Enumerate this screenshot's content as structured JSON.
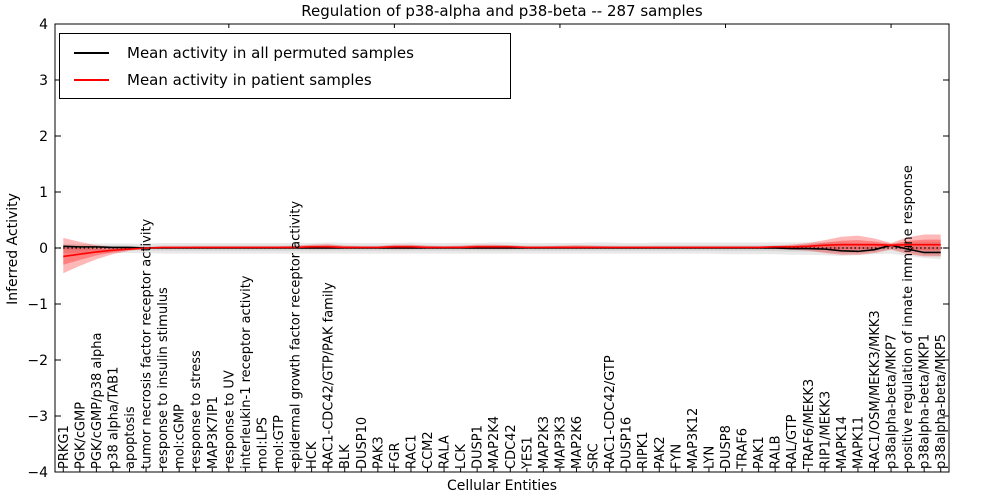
{
  "figure": {
    "title": "Regulation of p38-alpha and p38-beta -- 287 samples",
    "xlabel": "Cellular Entities",
    "ylabel": "Inferred Activity"
  },
  "legend": {
    "items": [
      {
        "label": "Mean activity in all permuted samples",
        "color": "#000000"
      },
      {
        "label": "Mean activity in patient samples",
        "color": "#ff0000"
      }
    ]
  },
  "chart_data": {
    "type": "line",
    "title": "Regulation of p38-alpha and p38-beta -- 287 samples",
    "xlabel": "Cellular Entities",
    "ylabel": "Inferred Activity",
    "ylim": [
      -4,
      4
    ],
    "yticks": [
      "4",
      "3",
      "2",
      "1",
      "0",
      "−1",
      "−2",
      "−3",
      "−4"
    ],
    "grid": false,
    "legend_position": "upper left",
    "zero_line": {
      "style": "dotted",
      "color": "#000000",
      "y": 0
    },
    "top_tick_positions": [
      10,
      20,
      30,
      40,
      50
    ],
    "categories": [
      "PRKG1",
      "PGK/cGMP",
      "PGK/cGMP/p38 alpha",
      "p38 alpha/TAB1",
      "apoptosis",
      "tumor necrosis factor receptor activity",
      "response to insulin stimulus",
      "mol:cGMP",
      "response to stress",
      "MAP3K7IP1",
      "response to UV",
      "interleukin-1 receptor activity",
      "mol:LPS",
      "mol:GTP",
      "epidermal growth factor receptor activity",
      "HCK",
      "RAC1-CDC42/GTP/PAK family",
      "BLK",
      "DUSP10",
      "PAK3",
      "FGR",
      "RAC1",
      "CCM2",
      "RALA",
      "LCK",
      "DUSP1",
      "MAP2K4",
      "CDC42",
      "YES1",
      "MAP2K3",
      "MAP3K3",
      "MAP2K6",
      "SRC",
      "RAC1-CDC42/GTP",
      "DUSP16",
      "RIPK1",
      "PAK2",
      "FYN",
      "MAP3K12",
      "LYN",
      "DUSP8",
      "TRAF6",
      "PAK1",
      "RALB",
      "RAL/GTP",
      "TRAF6/MEKK3",
      "RIP1/MEKK3",
      "MAPK14",
      "MAPK11",
      "RAC1/OSM/MEKK3/MKK3",
      "p38alpha-beta/MKP7",
      "positive regulation of innate immune response",
      "p38alpha-beta/MKP1",
      "p38alpha-beta/MKP5"
    ],
    "series": [
      {
        "name": "Mean activity in all permuted samples",
        "color": "#000000",
        "values": [
          0.03,
          0.02,
          0.02,
          0.01,
          0.01,
          0,
          0,
          0,
          0,
          0,
          0,
          0,
          0,
          0,
          0,
          0,
          0,
          0,
          0,
          0,
          0,
          0,
          0,
          0,
          0,
          0,
          0,
          0,
          0,
          0,
          0,
          0,
          0,
          0,
          0,
          0,
          0,
          0,
          0,
          0,
          0,
          0,
          0,
          0,
          -0.01,
          -0.01,
          -0.02,
          -0.05,
          -0.06,
          -0.03,
          0.05,
          -0.02,
          -0.08,
          -0.08
        ]
      },
      {
        "name": "Mean activity in patient samples",
        "color": "#ff0000",
        "values": [
          -0.15,
          -0.11,
          -0.07,
          -0.04,
          -0.02,
          0,
          0.01,
          0.01,
          0.01,
          0.01,
          0.01,
          0.01,
          0.01,
          0.01,
          0.01,
          0.02,
          0.02,
          0.01,
          0.01,
          0.01,
          0.02,
          0.02,
          0.01,
          0.01,
          0.01,
          0.02,
          0.02,
          0.02,
          0.01,
          0.01,
          0.01,
          0.01,
          0.01,
          0.01,
          0.01,
          0.01,
          0.01,
          0.01,
          0.01,
          0.01,
          0.01,
          0.01,
          0.01,
          0.02,
          0.02,
          0.03,
          0.05,
          0.06,
          0.06,
          0.06,
          0.05,
          0.06,
          0.06,
          0.06
        ]
      }
    ],
    "bands": [
      {
        "name": "permuted-band",
        "series_index": 0,
        "color": "#000000",
        "opacity_outer": 0.09,
        "opacity_inner": 0.08,
        "upper": [
          0.07,
          0.07,
          0.08,
          0.08,
          0.08,
          0.08,
          0.09,
          0.09,
          0.09,
          0.09,
          0.09,
          0.09,
          0.09,
          0.09,
          0.09,
          0.09,
          0.1,
          0.09,
          0.09,
          0.09,
          0.09,
          0.1,
          0.09,
          0.09,
          0.09,
          0.09,
          0.1,
          0.1,
          0.09,
          0.09,
          0.09,
          0.09,
          0.1,
          0.1,
          0.09,
          0.09,
          0.1,
          0.1,
          0.1,
          0.1,
          0.1,
          0.1,
          0.1,
          0.1,
          0.1,
          0.1,
          0.1,
          0.1,
          0.09,
          0.08,
          0.08,
          0.1,
          0.11,
          0.11
        ],
        "lower": [
          -0.09,
          -0.09,
          -0.09,
          -0.09,
          -0.09,
          -0.09,
          -0.1,
          -0.1,
          -0.1,
          -0.1,
          -0.1,
          -0.1,
          -0.1,
          -0.1,
          -0.1,
          -0.1,
          -0.1,
          -0.1,
          -0.1,
          -0.1,
          -0.1,
          -0.1,
          -0.1,
          -0.1,
          -0.1,
          -0.1,
          -0.1,
          -0.1,
          -0.1,
          -0.1,
          -0.1,
          -0.1,
          -0.1,
          -0.1,
          -0.1,
          -0.1,
          -0.1,
          -0.1,
          -0.1,
          -0.1,
          -0.11,
          -0.11,
          -0.11,
          -0.11,
          -0.12,
          -0.12,
          -0.13,
          -0.14,
          -0.13,
          -0.11,
          -0.1,
          -0.14,
          -0.18,
          -0.2
        ]
      },
      {
        "name": "patient-band",
        "series_index": 1,
        "color": "#ff0000",
        "opacity_outer": 0.28,
        "opacity_inner": 0.3,
        "upper": [
          0.18,
          0.11,
          0.05,
          0.02,
          0.01,
          0.01,
          0.02,
          0.02,
          0.03,
          0.03,
          0.03,
          0.03,
          0.03,
          0.03,
          0.04,
          0.06,
          0.07,
          0.04,
          0.03,
          0.03,
          0.06,
          0.06,
          0.04,
          0.03,
          0.04,
          0.06,
          0.06,
          0.05,
          0.03,
          0.03,
          0.04,
          0.05,
          0.04,
          0.03,
          0.03,
          0.03,
          0.03,
          0.03,
          0.03,
          0.03,
          0.03,
          0.03,
          0.03,
          0.04,
          0.06,
          0.09,
          0.14,
          0.2,
          0.22,
          0.17,
          0.09,
          0.19,
          0.24,
          0.24
        ],
        "lower": [
          -0.45,
          -0.32,
          -0.2,
          -0.11,
          -0.05,
          -0.02,
          -0.01,
          -0.01,
          -0.01,
          -0.01,
          -0.01,
          -0.01,
          -0.01,
          -0.01,
          -0.01,
          -0.02,
          -0.02,
          -0.01,
          -0.01,
          -0.01,
          -0.02,
          -0.02,
          -0.01,
          -0.01,
          -0.01,
          -0.02,
          -0.02,
          -0.02,
          -0.01,
          -0.01,
          -0.01,
          -0.01,
          -0.01,
          -0.01,
          -0.01,
          -0.01,
          -0.01,
          -0.01,
          -0.01,
          -0.01,
          -0.01,
          -0.01,
          -0.01,
          -0.02,
          -0.03,
          -0.05,
          -0.09,
          -0.12,
          -0.12,
          -0.09,
          -0.03,
          -0.11,
          -0.15,
          -0.15
        ]
      }
    ]
  }
}
